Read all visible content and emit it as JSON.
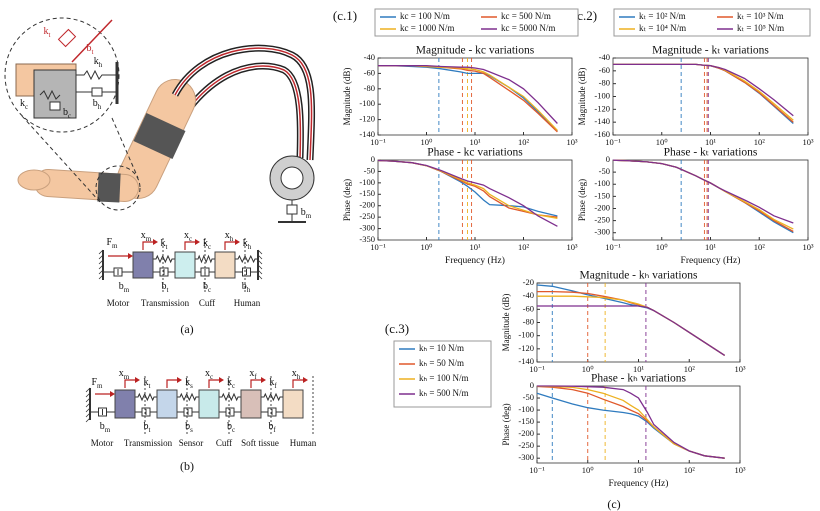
{
  "captions": [
    "(a)",
    "(b)",
    "(c)"
  ],
  "panel_labels": [
    "(c.1)",
    "(c.2)",
    "(c.3)"
  ],
  "zoom": {
    "labels": [
      {
        "main": "k",
        "sub": "t"
      },
      {
        "main": "b",
        "sub": "t"
      },
      {
        "main": "k",
        "sub": "h"
      },
      {
        "main": "b",
        "sub": "h"
      },
      {
        "main": "k",
        "sub": "c"
      },
      {
        "main": "b",
        "sub": "c"
      }
    ]
  },
  "arm": {
    "labels": [
      {
        "main": "b",
        "sub": "m"
      }
    ]
  },
  "diagram_a": {
    "labels": [
      {
        "main": "F",
        "sub": "m"
      },
      {
        "main": "x",
        "sub": "m"
      },
      {
        "main": "x",
        "sub": "c"
      },
      {
        "main": "k",
        "sub": "c"
      },
      {
        "main": "x",
        "sub": "h"
      },
      {
        "main": "k",
        "sub": "h"
      },
      {
        "main": "k",
        "sub": "t"
      },
      {
        "main": "b",
        "sub": "m"
      },
      {
        "main": "b",
        "sub": "t"
      },
      {
        "main": "b",
        "sub": "c"
      },
      {
        "main": "b",
        "sub": "h"
      }
    ],
    "names": [
      "Motor",
      "Transmission",
      "Cuff",
      "Human"
    ]
  },
  "diagram_b": {
    "labels": [
      {
        "main": "F",
        "sub": "m"
      },
      {
        "main": "x",
        "sub": "m"
      },
      {
        "main": "k",
        "sub": "t"
      },
      {
        "main": "k",
        "sub": "s"
      },
      {
        "main": "x",
        "sub": "c"
      },
      {
        "main": "k",
        "sub": "c"
      },
      {
        "main": "x",
        "sub": "f"
      },
      {
        "main": "k",
        "sub": "f"
      },
      {
        "main": "x",
        "sub": "h"
      },
      {
        "main": "b",
        "sub": "m"
      },
      {
        "main": "b",
        "sub": "t"
      },
      {
        "main": "b",
        "sub": "s"
      },
      {
        "main": "b",
        "sub": "c"
      },
      {
        "main": "b",
        "sub": "f"
      }
    ],
    "names": [
      "Motor",
      "Transmission",
      "Sensor",
      "Cuff",
      "Soft tissue",
      "Human"
    ]
  },
  "chart_data": [
    {
      "type": "line",
      "title": "Magnitude - kc variations",
      "ylabel": "Magnitude (dB)",
      "xlog": true,
      "xlim": [
        0.1,
        1000
      ],
      "ylim": [
        -140,
        -40
      ],
      "xticks": [
        {
          "value": 0.1,
          "label": "10⁻¹"
        },
        {
          "value": 1,
          "label": "10⁰"
        },
        {
          "value": 10,
          "label": "10¹"
        },
        {
          "value": 100,
          "label": "10²"
        },
        {
          "value": 1000,
          "label": "10³"
        }
      ],
      "yticks": [
        -40,
        -60,
        -80,
        -100,
        -120,
        -140
      ],
      "x": [
        0.1,
        0.2,
        0.5,
        1,
        2,
        5,
        7,
        10,
        15,
        20,
        50,
        100,
        200,
        500
      ],
      "series": [
        {
          "name": "kc = 100 N/m",
          "color": "#2f7bbf",
          "values": [
            -50,
            -50,
            -51,
            -52,
            -54,
            -58,
            -60,
            -60,
            -60,
            -63,
            -78,
            -92,
            -110,
            -135
          ]
        },
        {
          "name": "kc = 500 N/m",
          "color": "#e0592b",
          "values": [
            -50,
            -50,
            -50,
            -51,
            -52,
            -54,
            -56,
            -57,
            -60,
            -65,
            -82,
            -95,
            -112,
            -136
          ]
        },
        {
          "name": "kc = 1000 N/m",
          "color": "#edb120",
          "values": [
            -50,
            -50,
            -50,
            -51,
            -52,
            -53,
            -54,
            -55,
            -58,
            -62,
            -78,
            -90,
            -108,
            -134
          ]
        },
        {
          "name": "kc = 5000 N/m",
          "color": "#7e2f8e",
          "values": [
            -50,
            -50,
            -50,
            -50,
            -51,
            -52,
            -52,
            -53,
            -55,
            -58,
            -68,
            -80,
            -98,
            -125
          ]
        }
      ],
      "markers": [
        {
          "x": 1.8,
          "color": "#2f7bbf"
        },
        {
          "x": 5.5,
          "color": "#e0592b"
        },
        {
          "x": 7,
          "color": "#edb120"
        },
        {
          "x": 8.5,
          "color": "#e0592b"
        }
      ]
    },
    {
      "type": "line",
      "title": "Phase - kc variations",
      "ylabel": "Phase (deg)",
      "xlabel": "Frequency (Hz)",
      "xlog": true,
      "xlim": [
        0.1,
        1000
      ],
      "ylim": [
        -350,
        0
      ],
      "xticks": [
        {
          "value": 0.1,
          "label": "10⁻¹"
        },
        {
          "value": 1,
          "label": "10⁰"
        },
        {
          "value": 10,
          "label": "10¹"
        },
        {
          "value": 100,
          "label": "10²"
        },
        {
          "value": 1000,
          "label": "10³"
        }
      ],
      "yticks": [
        0,
        -50,
        -100,
        -150,
        -200,
        -250,
        -300,
        -350
      ],
      "x": [
        0.1,
        0.2,
        0.5,
        1,
        2,
        5,
        7,
        10,
        15,
        20,
        50,
        100,
        200,
        500
      ],
      "series": [
        {
          "color": "#2f7bbf",
          "values": [
            -2,
            -5,
            -12,
            -25,
            -50,
            -95,
            -115,
            -140,
            -175,
            -195,
            -200,
            -205,
            -225,
            -245
          ]
        },
        {
          "color": "#e0592b",
          "values": [
            -2,
            -5,
            -12,
            -25,
            -50,
            -90,
            -105,
            -115,
            -135,
            -160,
            -210,
            -225,
            -240,
            -250
          ]
        },
        {
          "color": "#edb120",
          "values": [
            -2,
            -5,
            -12,
            -25,
            -48,
            -85,
            -100,
            -110,
            -125,
            -150,
            -200,
            -220,
            -240,
            -255
          ]
        },
        {
          "color": "#7e2f8e",
          "values": [
            -2,
            -5,
            -12,
            -24,
            -46,
            -80,
            -92,
            -100,
            -110,
            -125,
            -165,
            -200,
            -245,
            -290
          ]
        }
      ],
      "markers": [
        {
          "x": 1.8,
          "color": "#2f7bbf"
        },
        {
          "x": 5.5,
          "color": "#e0592b"
        },
        {
          "x": 7,
          "color": "#edb120"
        },
        {
          "x": 8.5,
          "color": "#e0592b"
        }
      ]
    },
    {
      "type": "line",
      "title": "Magnitude - kₜ variations",
      "ylabel": "Magnitude (dB)",
      "xlog": true,
      "xlim": [
        0.1,
        1000
      ],
      "ylim": [
        -160,
        -40
      ],
      "xticks": [
        {
          "value": 0.1,
          "label": "10⁻¹"
        },
        {
          "value": 1,
          "label": "10⁰"
        },
        {
          "value": 10,
          "label": "10¹"
        },
        {
          "value": 100,
          "label": "10²"
        },
        {
          "value": 1000,
          "label": "10³"
        }
      ],
      "yticks": [
        -40,
        -60,
        -80,
        -100,
        -120,
        -140,
        -160
      ],
      "x": [
        0.1,
        0.2,
        0.5,
        1,
        2,
        5,
        7,
        10,
        15,
        20,
        50,
        100,
        200,
        500
      ],
      "series": [
        {
          "name": "kₜ = 10² N/m",
          "color": "#2f7bbf",
          "values": [
            -50,
            -50,
            -50,
            -50,
            -50,
            -50,
            -51,
            -52,
            -56,
            -60,
            -78,
            -95,
            -115,
            -142
          ]
        },
        {
          "name": "kₜ = 10³ N/m",
          "color": "#e0592b",
          "values": [
            -50,
            -50,
            -50,
            -50,
            -50,
            -50,
            -51,
            -52,
            -56,
            -60,
            -78,
            -94,
            -114,
            -140
          ]
        },
        {
          "name": "kₜ = 10⁴ N/m",
          "color": "#edb120",
          "values": [
            -50,
            -50,
            -50,
            -50,
            -50,
            -50,
            -51,
            -52,
            -55,
            -59,
            -76,
            -92,
            -111,
            -137
          ]
        },
        {
          "name": "kₜ = 10⁵ N/m",
          "color": "#7e2f8e",
          "values": [
            -50,
            -50,
            -50,
            -50,
            -50,
            -50,
            -51,
            -52,
            -55,
            -58,
            -72,
            -88,
            -105,
            -130
          ]
        }
      ],
      "markers": [
        {
          "x": 2.5,
          "color": "#2f7bbf"
        },
        {
          "x": 7.5,
          "color": "#e0592b"
        },
        {
          "x": 8.5,
          "color": "#e0592b"
        },
        {
          "x": 9,
          "color": "#7e2f8e"
        }
      ]
    },
    {
      "type": "line",
      "title": "Phase - kₜ variations",
      "ylabel": "Phase (deg)",
      "xlabel": "Frequency (Hz)",
      "xlog": true,
      "xlim": [
        0.1,
        1000
      ],
      "ylim": [
        -330,
        0
      ],
      "xticks": [
        {
          "value": 0.1,
          "label": "10⁻¹"
        },
        {
          "value": 1,
          "label": "10⁰"
        },
        {
          "value": 10,
          "label": "10¹"
        },
        {
          "value": 100,
          "label": "10²"
        },
        {
          "value": 1000,
          "label": "10³"
        }
      ],
      "yticks": [
        0,
        -50,
        -100,
        -150,
        -200,
        -250,
        -300
      ],
      "x": [
        0.1,
        0.2,
        0.5,
        1,
        2,
        5,
        7,
        10,
        15,
        20,
        50,
        100,
        200,
        500
      ],
      "series": [
        {
          "color": "#2f7bbf",
          "values": [
            -1,
            -3,
            -8,
            -15,
            -30,
            -65,
            -80,
            -95,
            -115,
            -130,
            -175,
            -215,
            -255,
            -300
          ]
        },
        {
          "color": "#e0592b",
          "values": [
            -1,
            -3,
            -8,
            -15,
            -30,
            -65,
            -80,
            -95,
            -115,
            -130,
            -175,
            -210,
            -250,
            -295
          ]
        },
        {
          "color": "#edb120",
          "values": [
            -1,
            -3,
            -8,
            -15,
            -30,
            -65,
            -80,
            -95,
            -115,
            -130,
            -172,
            -205,
            -245,
            -285
          ]
        },
        {
          "color": "#7e2f8e",
          "values": [
            -1,
            -3,
            -8,
            -15,
            -30,
            -65,
            -80,
            -95,
            -115,
            -128,
            -165,
            -195,
            -230,
            -260
          ]
        }
      ],
      "markers": [
        {
          "x": 2.5,
          "color": "#2f7bbf"
        },
        {
          "x": 7.5,
          "color": "#e0592b"
        },
        {
          "x": 8.5,
          "color": "#e0592b"
        },
        {
          "x": 9,
          "color": "#7e2f8e"
        }
      ]
    },
    {
      "type": "line",
      "title": "Magnitude - kₕ variations",
      "ylabel": "Magnitude (dB)",
      "xlog": true,
      "xlim": [
        0.1,
        1000
      ],
      "ylim": [
        -140,
        -20
      ],
      "xticks": [
        {
          "value": 0.1,
          "label": "10⁻¹"
        },
        {
          "value": 1,
          "label": "10⁰"
        },
        {
          "value": 10,
          "label": "10¹"
        },
        {
          "value": 100,
          "label": "10²"
        },
        {
          "value": 1000,
          "label": "10³"
        }
      ],
      "yticks": [
        -20,
        -40,
        -60,
        -80,
        -100,
        -120,
        -140
      ],
      "x": [
        0.1,
        0.2,
        0.5,
        1,
        2,
        5,
        7,
        10,
        15,
        20,
        50,
        100,
        200,
        500
      ],
      "series": [
        {
          "name": "kₕ = 10 N/m",
          "color": "#2f7bbf",
          "values": [
            -23,
            -25,
            -32,
            -38,
            -43,
            -50,
            -53,
            -55,
            -58,
            -62,
            -80,
            -95,
            -110,
            -130
          ]
        },
        {
          "name": "kₕ = 50 N/m",
          "color": "#e0592b",
          "values": [
            -33,
            -33,
            -34,
            -36,
            -40,
            -46,
            -50,
            -53,
            -57,
            -62,
            -80,
            -95,
            -110,
            -130
          ]
        },
        {
          "name": "kₕ = 100 N/m",
          "color": "#edb120",
          "values": [
            -40,
            -40,
            -40,
            -41,
            -42,
            -46,
            -49,
            -52,
            -57,
            -62,
            -80,
            -95,
            -110,
            -130
          ]
        },
        {
          "name": "kₕ = 500 N/m",
          "color": "#7e2f8e",
          "values": [
            -55,
            -55,
            -55,
            -55,
            -55,
            -55,
            -55,
            -55,
            -57,
            -62,
            -80,
            -95,
            -110,
            -130
          ]
        }
      ],
      "markers": [
        {
          "x": 0.2,
          "color": "#2f7bbf"
        },
        {
          "x": 1,
          "color": "#e0592b"
        },
        {
          "x": 2.2,
          "color": "#edb120"
        },
        {
          "x": 14,
          "color": "#7e2f8e"
        }
      ]
    },
    {
      "type": "line",
      "title": "Phase - kₕ variations",
      "ylabel": "Phase (deg)",
      "xlabel": "Frequency (Hz)",
      "xlog": true,
      "xlim": [
        0.1,
        1000
      ],
      "ylim": [
        -320,
        0
      ],
      "xticks": [
        {
          "value": 0.1,
          "label": "10⁻¹"
        },
        {
          "value": 1,
          "label": "10⁰"
        },
        {
          "value": 10,
          "label": "10¹"
        },
        {
          "value": 100,
          "label": "10²"
        },
        {
          "value": 1000,
          "label": "10³"
        }
      ],
      "yticks": [
        0,
        -50,
        -100,
        -150,
        -200,
        -250,
        -300
      ],
      "x": [
        0.1,
        0.2,
        0.5,
        1,
        2,
        5,
        7,
        10,
        15,
        20,
        50,
        100,
        200,
        500
      ],
      "series": [
        {
          "color": "#2f7bbf",
          "values": [
            -30,
            -50,
            -75,
            -90,
            -100,
            -110,
            -115,
            -125,
            -150,
            -175,
            -240,
            -270,
            -290,
            -300
          ]
        },
        {
          "color": "#e0592b",
          "values": [
            -2,
            -5,
            -15,
            -30,
            -55,
            -85,
            -100,
            -115,
            -145,
            -170,
            -240,
            -270,
            -290,
            -300
          ]
        },
        {
          "color": "#edb120",
          "values": [
            -1,
            -2,
            -6,
            -15,
            -30,
            -60,
            -80,
            -100,
            -140,
            -170,
            -240,
            -270,
            -290,
            -300
          ]
        },
        {
          "color": "#7e2f8e",
          "values": [
            0,
            0,
            -1,
            -3,
            -5,
            -15,
            -30,
            -50,
            -110,
            -160,
            -235,
            -270,
            -290,
            -300
          ]
        }
      ],
      "markers": [
        {
          "x": 0.2,
          "color": "#2f7bbf"
        },
        {
          "x": 1,
          "color": "#e0592b"
        },
        {
          "x": 2.2,
          "color": "#edb120"
        },
        {
          "x": 14,
          "color": "#7e2f8e"
        }
      ]
    }
  ]
}
